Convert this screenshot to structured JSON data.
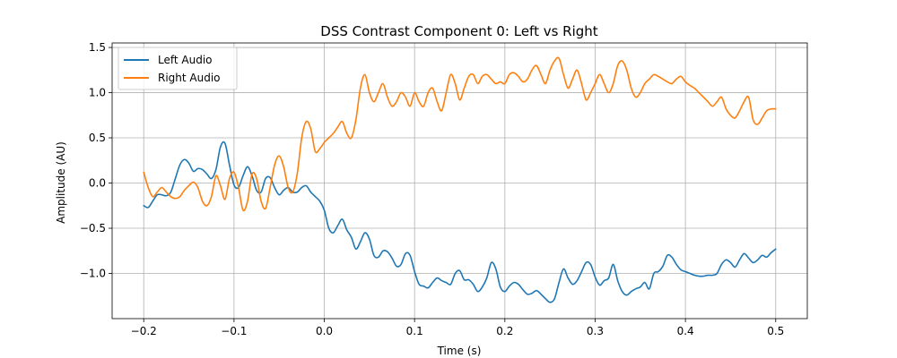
{
  "chart_data": {
    "type": "line",
    "title": "DSS Contrast Component 0: Left vs Right",
    "xlabel": "Time (s)",
    "ylabel": "Amplitude (AU)",
    "xlim": [
      -0.235,
      0.535
    ],
    "ylim": [
      -1.5,
      1.55
    ],
    "xticks": [
      -0.2,
      -0.1,
      0.0,
      0.1,
      0.2,
      0.3,
      0.4,
      0.5
    ],
    "xtick_labels": [
      "−0.2",
      "−0.1",
      "0.0",
      "0.1",
      "0.2",
      "0.3",
      "0.4",
      "0.5"
    ],
    "yticks": [
      -1.0,
      -0.5,
      0.0,
      0.5,
      1.0,
      1.5
    ],
    "ytick_labels": [
      "−1.0",
      "−0.5",
      "0.0",
      "0.5",
      "1.0",
      "1.5"
    ],
    "grid": true,
    "legend": "top-left",
    "series": [
      {
        "name": "Left Audio",
        "color": "#1f77b4",
        "x": [
          -0.2,
          -0.195,
          -0.19,
          -0.185,
          -0.18,
          -0.175,
          -0.17,
          -0.165,
          -0.16,
          -0.155,
          -0.15,
          -0.145,
          -0.14,
          -0.135,
          -0.13,
          -0.125,
          -0.12,
          -0.115,
          -0.11,
          -0.105,
          -0.1,
          -0.095,
          -0.09,
          -0.085,
          -0.08,
          -0.075,
          -0.07,
          -0.065,
          -0.06,
          -0.055,
          -0.05,
          -0.045,
          -0.04,
          -0.035,
          -0.03,
          -0.025,
          -0.02,
          -0.015,
          -0.01,
          -0.005,
          0.0,
          0.005,
          0.01,
          0.015,
          0.02,
          0.025,
          0.03,
          0.035,
          0.04,
          0.045,
          0.05,
          0.055,
          0.06,
          0.065,
          0.07,
          0.075,
          0.08,
          0.085,
          0.09,
          0.095,
          0.1,
          0.105,
          0.11,
          0.115,
          0.12,
          0.125,
          0.13,
          0.135,
          0.14,
          0.145,
          0.15,
          0.155,
          0.16,
          0.165,
          0.17,
          0.175,
          0.18,
          0.185,
          0.19,
          0.195,
          0.2,
          0.205,
          0.21,
          0.215,
          0.22,
          0.225,
          0.23,
          0.235,
          0.24,
          0.245,
          0.25,
          0.255,
          0.26,
          0.265,
          0.27,
          0.275,
          0.28,
          0.285,
          0.29,
          0.295,
          0.3,
          0.305,
          0.31,
          0.315,
          0.32,
          0.325,
          0.33,
          0.335,
          0.34,
          0.345,
          0.35,
          0.355,
          0.36,
          0.365,
          0.37,
          0.375,
          0.38,
          0.385,
          0.39,
          0.395,
          0.4,
          0.405,
          0.41,
          0.415,
          0.42,
          0.425,
          0.43,
          0.435,
          0.44,
          0.445,
          0.45,
          0.455,
          0.46,
          0.465,
          0.47,
          0.475,
          0.48,
          0.485,
          0.49,
          0.495,
          0.5
        ],
        "y": [
          -0.25,
          -0.27,
          -0.2,
          -0.13,
          -0.13,
          -0.14,
          -0.1,
          0.05,
          0.2,
          0.26,
          0.22,
          0.13,
          0.16,
          0.15,
          0.1,
          0.05,
          0.15,
          0.4,
          0.44,
          0.2,
          -0.02,
          -0.05,
          0.08,
          0.18,
          0.08,
          -0.08,
          -0.1,
          0.05,
          0.06,
          -0.05,
          -0.13,
          -0.08,
          -0.05,
          -0.1,
          -0.1,
          -0.05,
          -0.03,
          -0.1,
          -0.15,
          -0.2,
          -0.3,
          -0.5,
          -0.55,
          -0.47,
          -0.4,
          -0.52,
          -0.6,
          -0.73,
          -0.65,
          -0.55,
          -0.62,
          -0.8,
          -0.82,
          -0.75,
          -0.76,
          -0.83,
          -0.92,
          -0.9,
          -0.78,
          -0.8,
          -0.98,
          -1.12,
          -1.14,
          -1.16,
          -1.1,
          -1.05,
          -1.08,
          -1.1,
          -1.12,
          -1.0,
          -0.97,
          -1.07,
          -1.07,
          -1.12,
          -1.2,
          -1.15,
          -1.05,
          -0.88,
          -0.95,
          -1.15,
          -1.2,
          -1.14,
          -1.1,
          -1.12,
          -1.18,
          -1.23,
          -1.22,
          -1.19,
          -1.23,
          -1.28,
          -1.32,
          -1.28,
          -1.1,
          -0.95,
          -1.05,
          -1.12,
          -1.08,
          -0.98,
          -0.88,
          -0.9,
          -1.04,
          -1.13,
          -1.08,
          -1.05,
          -0.9,
          -1.08,
          -1.2,
          -1.24,
          -1.2,
          -1.17,
          -1.15,
          -1.1,
          -1.17,
          -1.0,
          -0.98,
          -0.92,
          -0.8,
          -0.82,
          -0.9,
          -0.96,
          -0.98,
          -1.0,
          -1.02,
          -1.03,
          -1.03,
          -1.02,
          -1.02,
          -1.0,
          -0.9,
          -0.85,
          -0.88,
          -0.93,
          -0.85,
          -0.78,
          -0.83,
          -0.88,
          -0.85,
          -0.8,
          -0.82,
          -0.77,
          -0.73
        ]
      },
      {
        "name": "Right Audio",
        "color": "#ff7f0e",
        "x": [
          -0.2,
          -0.195,
          -0.19,
          -0.185,
          -0.18,
          -0.175,
          -0.17,
          -0.165,
          -0.16,
          -0.155,
          -0.15,
          -0.145,
          -0.14,
          -0.135,
          -0.13,
          -0.125,
          -0.12,
          -0.115,
          -0.11,
          -0.105,
          -0.1,
          -0.095,
          -0.09,
          -0.085,
          -0.08,
          -0.075,
          -0.07,
          -0.065,
          -0.06,
          -0.055,
          -0.05,
          -0.045,
          -0.04,
          -0.035,
          -0.03,
          -0.025,
          -0.02,
          -0.015,
          -0.01,
          -0.005,
          0.0,
          0.005,
          0.01,
          0.015,
          0.02,
          0.025,
          0.03,
          0.035,
          0.04,
          0.045,
          0.05,
          0.055,
          0.06,
          0.065,
          0.07,
          0.075,
          0.08,
          0.085,
          0.09,
          0.095,
          0.1,
          0.105,
          0.11,
          0.115,
          0.12,
          0.125,
          0.13,
          0.135,
          0.14,
          0.145,
          0.15,
          0.155,
          0.16,
          0.165,
          0.17,
          0.175,
          0.18,
          0.185,
          0.19,
          0.195,
          0.2,
          0.205,
          0.21,
          0.215,
          0.22,
          0.225,
          0.23,
          0.235,
          0.24,
          0.245,
          0.25,
          0.255,
          0.26,
          0.265,
          0.27,
          0.275,
          0.28,
          0.285,
          0.29,
          0.295,
          0.3,
          0.305,
          0.31,
          0.315,
          0.32,
          0.325,
          0.33,
          0.335,
          0.34,
          0.345,
          0.35,
          0.355,
          0.36,
          0.365,
          0.37,
          0.375,
          0.38,
          0.385,
          0.39,
          0.395,
          0.4,
          0.405,
          0.41,
          0.415,
          0.42,
          0.425,
          0.43,
          0.435,
          0.44,
          0.445,
          0.45,
          0.455,
          0.46,
          0.465,
          0.47,
          0.475,
          0.48,
          0.485,
          0.49,
          0.495,
          0.5
        ],
        "y": [
          0.12,
          -0.05,
          -0.15,
          -0.1,
          -0.05,
          -0.1,
          -0.15,
          -0.17,
          -0.15,
          -0.08,
          -0.03,
          0.01,
          -0.05,
          -0.2,
          -0.25,
          -0.15,
          0.08,
          -0.03,
          -0.18,
          0.05,
          0.12,
          -0.05,
          -0.3,
          -0.2,
          0.1,
          0.05,
          -0.2,
          -0.28,
          -0.05,
          0.2,
          0.3,
          0.18,
          -0.05,
          -0.1,
          0.1,
          0.5,
          0.68,
          0.6,
          0.35,
          0.38,
          0.45,
          0.5,
          0.55,
          0.62,
          0.68,
          0.55,
          0.5,
          0.7,
          1.05,
          1.2,
          1.0,
          0.9,
          1.0,
          1.1,
          0.95,
          0.85,
          0.9,
          1.0,
          0.95,
          0.85,
          1.0,
          0.9,
          0.85,
          1.0,
          1.05,
          0.9,
          0.8,
          1.0,
          1.2,
          1.1,
          0.92,
          1.05,
          1.18,
          1.2,
          1.1,
          1.18,
          1.2,
          1.15,
          1.1,
          1.12,
          1.1,
          1.2,
          1.22,
          1.18,
          1.12,
          1.15,
          1.25,
          1.3,
          1.2,
          1.1,
          1.25,
          1.35,
          1.38,
          1.2,
          1.05,
          1.15,
          1.25,
          1.1,
          0.92,
          1.0,
          1.1,
          1.2,
          1.1,
          1.0,
          1.1,
          1.3,
          1.35,
          1.25,
          1.05,
          0.95,
          1.0,
          1.1,
          1.15,
          1.2,
          1.18,
          1.15,
          1.12,
          1.1,
          1.15,
          1.18,
          1.12,
          1.08,
          1.05,
          1.0,
          0.95,
          0.9,
          0.85,
          0.9,
          0.95,
          0.82,
          0.75,
          0.72,
          0.8,
          0.9,
          0.95,
          0.7,
          0.65,
          0.72,
          0.8,
          0.82,
          0.82
        ]
      }
    ]
  }
}
